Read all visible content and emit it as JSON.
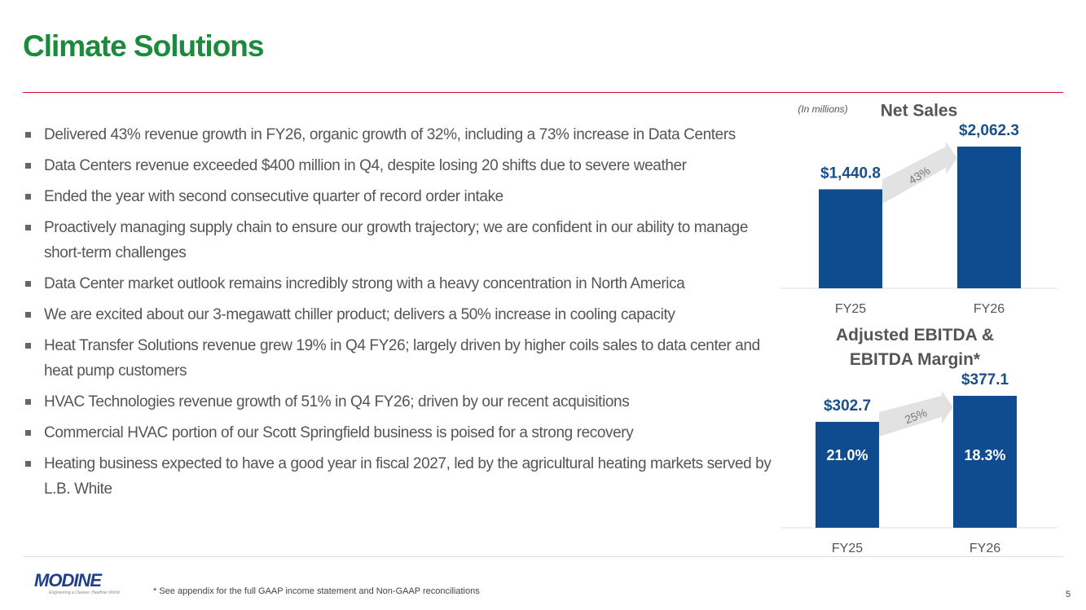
{
  "header": {
    "title": "Climate Solutions"
  },
  "bullets": [
    "Delivered 43% revenue growth in FY26, organic growth of 32%, including a 73% increase in Data Centers",
    "Data Centers revenue exceeded $400 million in Q4, despite losing 20 shifts due to severe weather",
    "Ended the year with second consecutive quarter of record order intake",
    "Proactively managing supply chain to ensure our growth trajectory; we are confident in our ability to manage short-term challenges",
    "Data Center market outlook remains incredibly strong with a heavy concentration in North America",
    "We are excited about our 3-megawatt chiller product; delivers a 50% increase in cooling capacity",
    "Heat Transfer Solutions revenue grew 19% in Q4 FY26; largely driven by higher coils sales to data center and heat pump customers",
    "HVAC Technologies revenue growth of 51% in Q4 FY26; driven by our recent acquisitions",
    "Commercial HVAC portion of our Scott Springfield business is poised for a strong recovery",
    "Heating business expected to have a good year in fiscal 2027, led by the agricultural heating markets served by L.B. White"
  ],
  "chart_data": [
    {
      "type": "bar",
      "title": "Net Sales",
      "unit_note": "(In millions)",
      "categories": [
        "FY25",
        "FY26"
      ],
      "values": [
        1440.8,
        2062.3
      ],
      "value_labels": [
        "$1,440.8",
        "$2,062.3"
      ],
      "color": "#0f4c8f",
      "growth_label": "43%"
    },
    {
      "type": "bar",
      "title": "Adjusted EBITDA & EBITDA Margin*",
      "categories": [
        "FY25",
        "FY26"
      ],
      "values": [
        302.7,
        377.1
      ],
      "value_labels": [
        "$302.7",
        "$377.1"
      ],
      "margin_labels": [
        "21.0%",
        "18.3%"
      ],
      "color": "#0f4c8f",
      "growth_label": "25%"
    }
  ],
  "footer": {
    "logo": "MODINE",
    "tagline": "Engineering a Cleaner, Healthier World",
    "footnote": "* See appendix for the full GAAP income statement and Non-GAAP reconciliations",
    "page_number": "5"
  }
}
